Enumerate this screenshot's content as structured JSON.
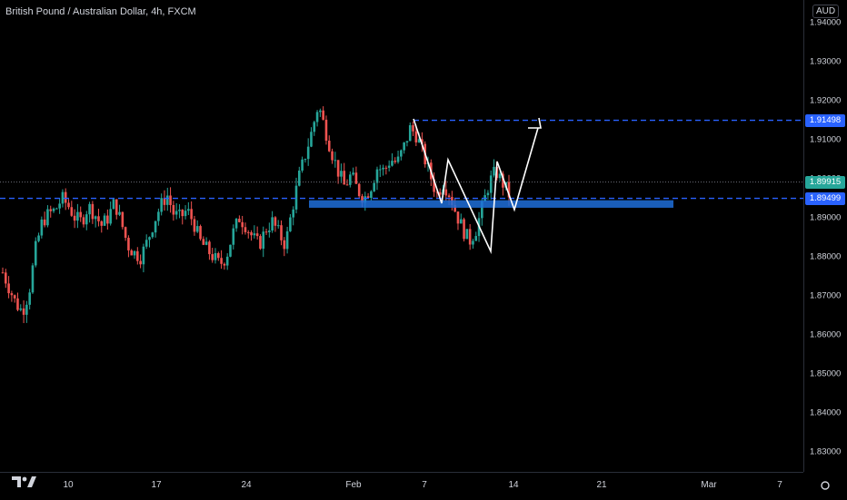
{
  "header": {
    "symbol_title": "British Pound / Australian Dollar, 4h, FXCM",
    "currency_button": "AUD"
  },
  "price_scale": {
    "labels": [
      "1.94000",
      "1.93000",
      "1.92000",
      "1.91000",
      "1.90000",
      "1.89000",
      "1.88000",
      "1.87000",
      "1.86000",
      "1.85000",
      "1.84000",
      "1.83000"
    ],
    "tags": {
      "resistance": {
        "text": "1.91498",
        "color": "#2962ff"
      },
      "last_price": {
        "text": "1.89915",
        "color": "#26a69a"
      },
      "support": {
        "text": "1.89499",
        "color": "#2962ff"
      }
    }
  },
  "time_scale": {
    "labels": [
      "10",
      "17",
      "24",
      "Feb",
      "7",
      "14",
      "21",
      "Mar",
      "7"
    ]
  },
  "colors": {
    "up_candle": "#26a69a",
    "down_candle": "#ef5350",
    "horizontal_line": "#2962ff",
    "zone_fill": "#1e6fd9",
    "drawing": "#ffffff"
  },
  "chart_data": {
    "type": "candlestick",
    "title": "British Pound / Australian Dollar, 4h, FXCM",
    "ylim": [
      1.82,
      1.945
    ],
    "y_ticks": [
      1.94,
      1.93,
      1.92,
      1.91,
      1.9,
      1.89,
      1.88,
      1.87,
      1.86,
      1.85,
      1.84,
      1.83
    ],
    "x_tick_labels": [
      "10",
      "17",
      "24",
      "Feb",
      "7",
      "14",
      "21",
      "Mar",
      "7"
    ],
    "close_path": [
      1.876,
      1.872,
      1.868,
      1.866,
      1.871,
      1.882,
      1.889,
      1.891,
      1.892,
      1.895,
      1.893,
      1.89,
      1.889,
      1.893,
      1.891,
      1.888,
      1.89,
      1.894,
      1.889,
      1.883,
      1.881,
      1.88,
      1.884,
      1.889,
      1.893,
      1.896,
      1.891,
      1.89,
      1.892,
      1.889,
      1.884,
      1.882,
      1.88,
      1.878,
      1.88,
      1.886,
      1.89,
      1.888,
      1.885,
      1.883,
      1.887,
      1.889,
      1.886,
      1.883,
      1.892,
      1.9,
      1.906,
      1.912,
      1.919,
      1.913,
      1.907,
      1.902,
      1.898,
      1.901,
      1.897,
      1.895,
      1.898,
      1.903,
      1.902,
      1.905,
      1.904,
      1.908,
      1.913,
      1.911,
      1.906,
      1.901,
      1.896,
      1.899,
      1.896,
      1.891,
      1.887,
      1.884,
      1.887,
      1.893,
      1.899,
      1.902,
      1.899,
      1.896
    ],
    "last_price": 1.89915,
    "support_level": 1.89499,
    "resistance_level": 1.91498,
    "support_zone": [
      1.8935,
      1.8945
    ]
  }
}
